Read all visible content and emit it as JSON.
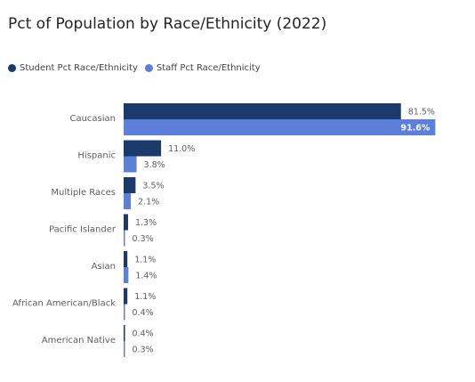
{
  "chart_data": {
    "type": "bar",
    "orientation": "horizontal",
    "title": "Pct of Population by Race/Ethnicity (2022)",
    "legend_position": "top-left",
    "categories": [
      "Caucasian",
      "Hispanic",
      "Multiple Races",
      "Pacific Islander",
      "Asian",
      "African American/Black",
      "American Native"
    ],
    "series": [
      {
        "name": "Student Pct Race/Ethnicity",
        "color": "#1b3a6b",
        "values": [
          81.5,
          11.0,
          3.5,
          1.3,
          1.1,
          1.1,
          0.4
        ],
        "labels": [
          "81.5%",
          "11.0%",
          "3.5%",
          "1.3%",
          "1.1%",
          "1.1%",
          "0.4%"
        ]
      },
      {
        "name": "Staff Pct Race/Ethnicity",
        "color": "#5b7fdb",
        "values": [
          91.6,
          3.8,
          2.1,
          0.3,
          1.4,
          0.4,
          0.3
        ],
        "labels": [
          "91.6%",
          "3.8%",
          "2.1%",
          "0.3%",
          "1.4%",
          "0.4%",
          "0.3%"
        ]
      }
    ],
    "xlim": [
      0,
      100
    ],
    "grid": false
  }
}
